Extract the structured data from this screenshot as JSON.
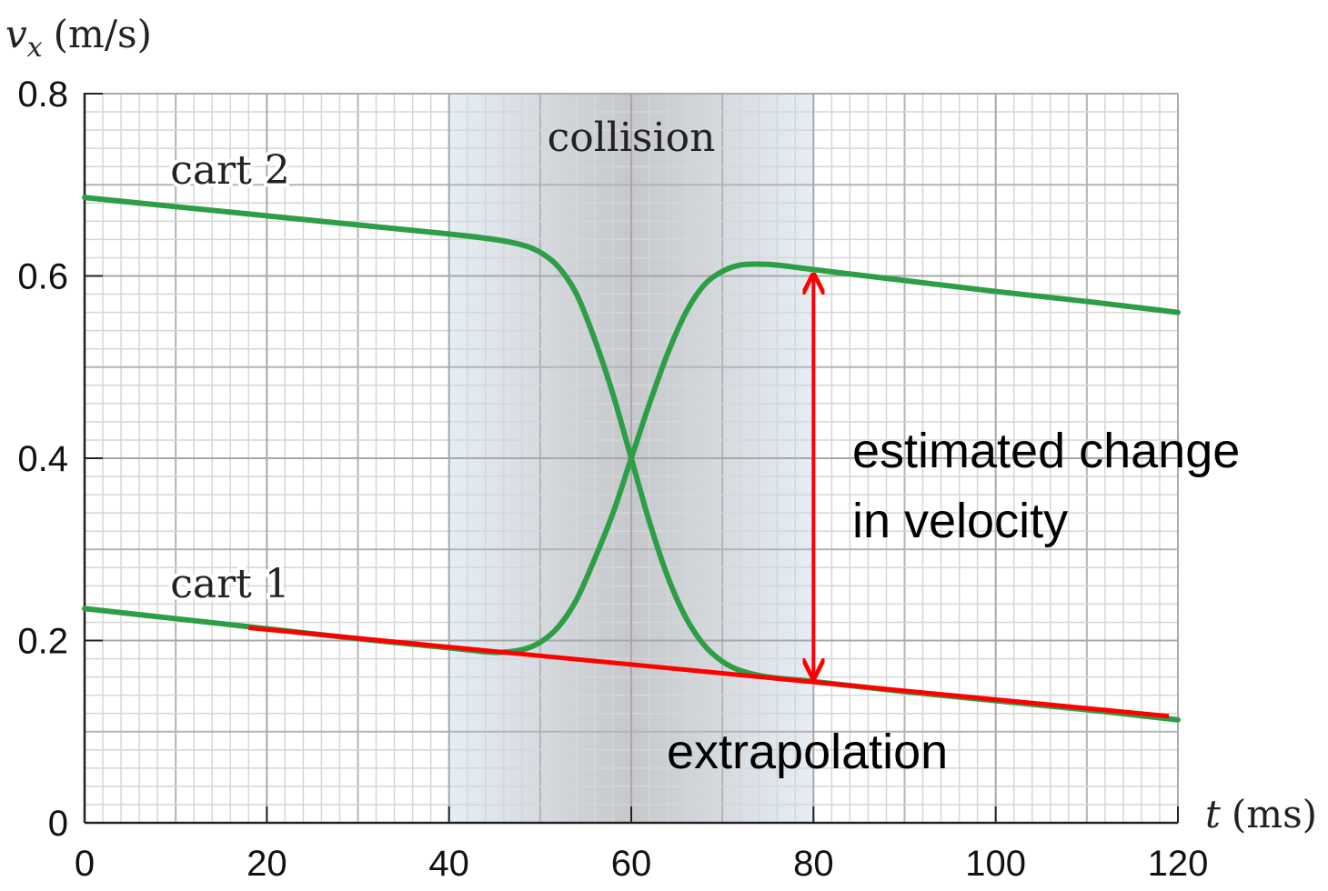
{
  "chart_data": {
    "type": "line",
    "ylabel": {
      "symbol": "v",
      "subscript": "x",
      "unit": "(m/s)"
    },
    "xlabel": {
      "symbol": "t",
      "unit": "(ms)"
    },
    "xlim": [
      0,
      120
    ],
    "ylim": [
      0,
      0.8
    ],
    "xticks": [
      0,
      20,
      40,
      60,
      80,
      100,
      120
    ],
    "yticks": [
      0,
      0.2,
      0.4,
      0.6,
      0.8
    ],
    "grid": true,
    "shaded_region": {
      "label": "collision",
      "x": [
        40,
        80
      ]
    },
    "series": [
      {
        "name": "cart 2",
        "color": "#2e9e46",
        "x": [
          0,
          10,
          20,
          30,
          40,
          45,
          48,
          50,
          52,
          54,
          56,
          58,
          60,
          62,
          64,
          66,
          68,
          70,
          72,
          75,
          80,
          90,
          100,
          110,
          120
        ],
        "values": [
          0.686,
          0.676,
          0.666,
          0.656,
          0.646,
          0.64,
          0.634,
          0.626,
          0.61,
          0.58,
          0.53,
          0.47,
          0.4,
          0.33,
          0.27,
          0.225,
          0.195,
          0.177,
          0.167,
          0.16,
          0.155,
          0.144,
          0.134,
          0.124,
          0.113
        ]
      },
      {
        "name": "cart 1",
        "color": "#2e9e46",
        "x": [
          0,
          10,
          20,
          30,
          40,
          45,
          48,
          50,
          52,
          54,
          56,
          58,
          60,
          62,
          64,
          66,
          68,
          70,
          72,
          74,
          76,
          80,
          90,
          100,
          110,
          120
        ],
        "values": [
          0.235,
          0.224,
          0.213,
          0.202,
          0.192,
          0.187,
          0.19,
          0.198,
          0.215,
          0.245,
          0.29,
          0.34,
          0.4,
          0.46,
          0.515,
          0.56,
          0.59,
          0.605,
          0.612,
          0.613,
          0.612,
          0.607,
          0.595,
          0.583,
          0.572,
          0.56
        ]
      }
    ],
    "extrapolation": {
      "label": "extrapolation",
      "color": "#ff0000",
      "x": [
        18,
        119
      ],
      "values": [
        0.214,
        0.117
      ]
    },
    "arrow": {
      "label": [
        "estimated change",
        "in velocity"
      ],
      "color": "#ff0000",
      "x": 80,
      "from": 0.155,
      "to": 0.605
    }
  }
}
